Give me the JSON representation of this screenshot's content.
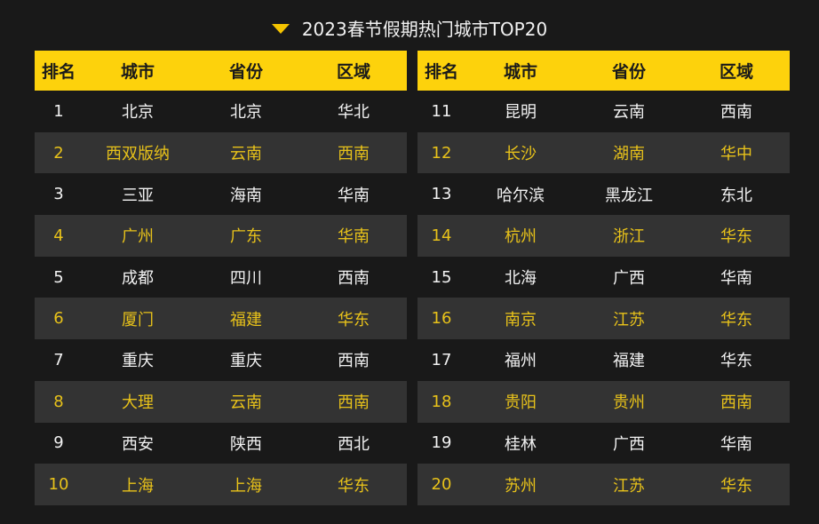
{
  "title": "2023春节假期热门城市TOP20",
  "colors": {
    "background": "#191919",
    "header": "#fdd20c",
    "accent_text": "#e8c21a",
    "alt_row": "#333333",
    "title_icon": "#f5c400"
  },
  "chart_data": {
    "type": "table",
    "title": "2023春节假期热门城市TOP20",
    "columns": [
      "排名",
      "城市",
      "省份",
      "区域"
    ],
    "left_rows": [
      [
        "1",
        "北京",
        "北京",
        "华北"
      ],
      [
        "2",
        "西双版纳",
        "云南",
        "西南"
      ],
      [
        "3",
        "三亚",
        "海南",
        "华南"
      ],
      [
        "4",
        "广州",
        "广东",
        "华南"
      ],
      [
        "5",
        "成都",
        "四川",
        "西南"
      ],
      [
        "6",
        "厦门",
        "福建",
        "华东"
      ],
      [
        "7",
        "重庆",
        "重庆",
        "西南"
      ],
      [
        "8",
        "大理",
        "云南",
        "西南"
      ],
      [
        "9",
        "西安",
        "陕西",
        "西北"
      ],
      [
        "10",
        "上海",
        "上海",
        "华东"
      ]
    ],
    "right_rows": [
      [
        "11",
        "昆明",
        "云南",
        "西南"
      ],
      [
        "12",
        "长沙",
        "湖南",
        "华中"
      ],
      [
        "13",
        "哈尔滨",
        "黑龙江",
        "东北"
      ],
      [
        "14",
        "杭州",
        "浙江",
        "华东"
      ],
      [
        "15",
        "北海",
        "广西",
        "华南"
      ],
      [
        "16",
        "南京",
        "江苏",
        "华东"
      ],
      [
        "17",
        "福州",
        "福建",
        "华东"
      ],
      [
        "18",
        "贵阳",
        "贵州",
        "西南"
      ],
      [
        "19",
        "桂林",
        "广西",
        "华南"
      ],
      [
        "20",
        "苏州",
        "江苏",
        "华东"
      ]
    ]
  }
}
